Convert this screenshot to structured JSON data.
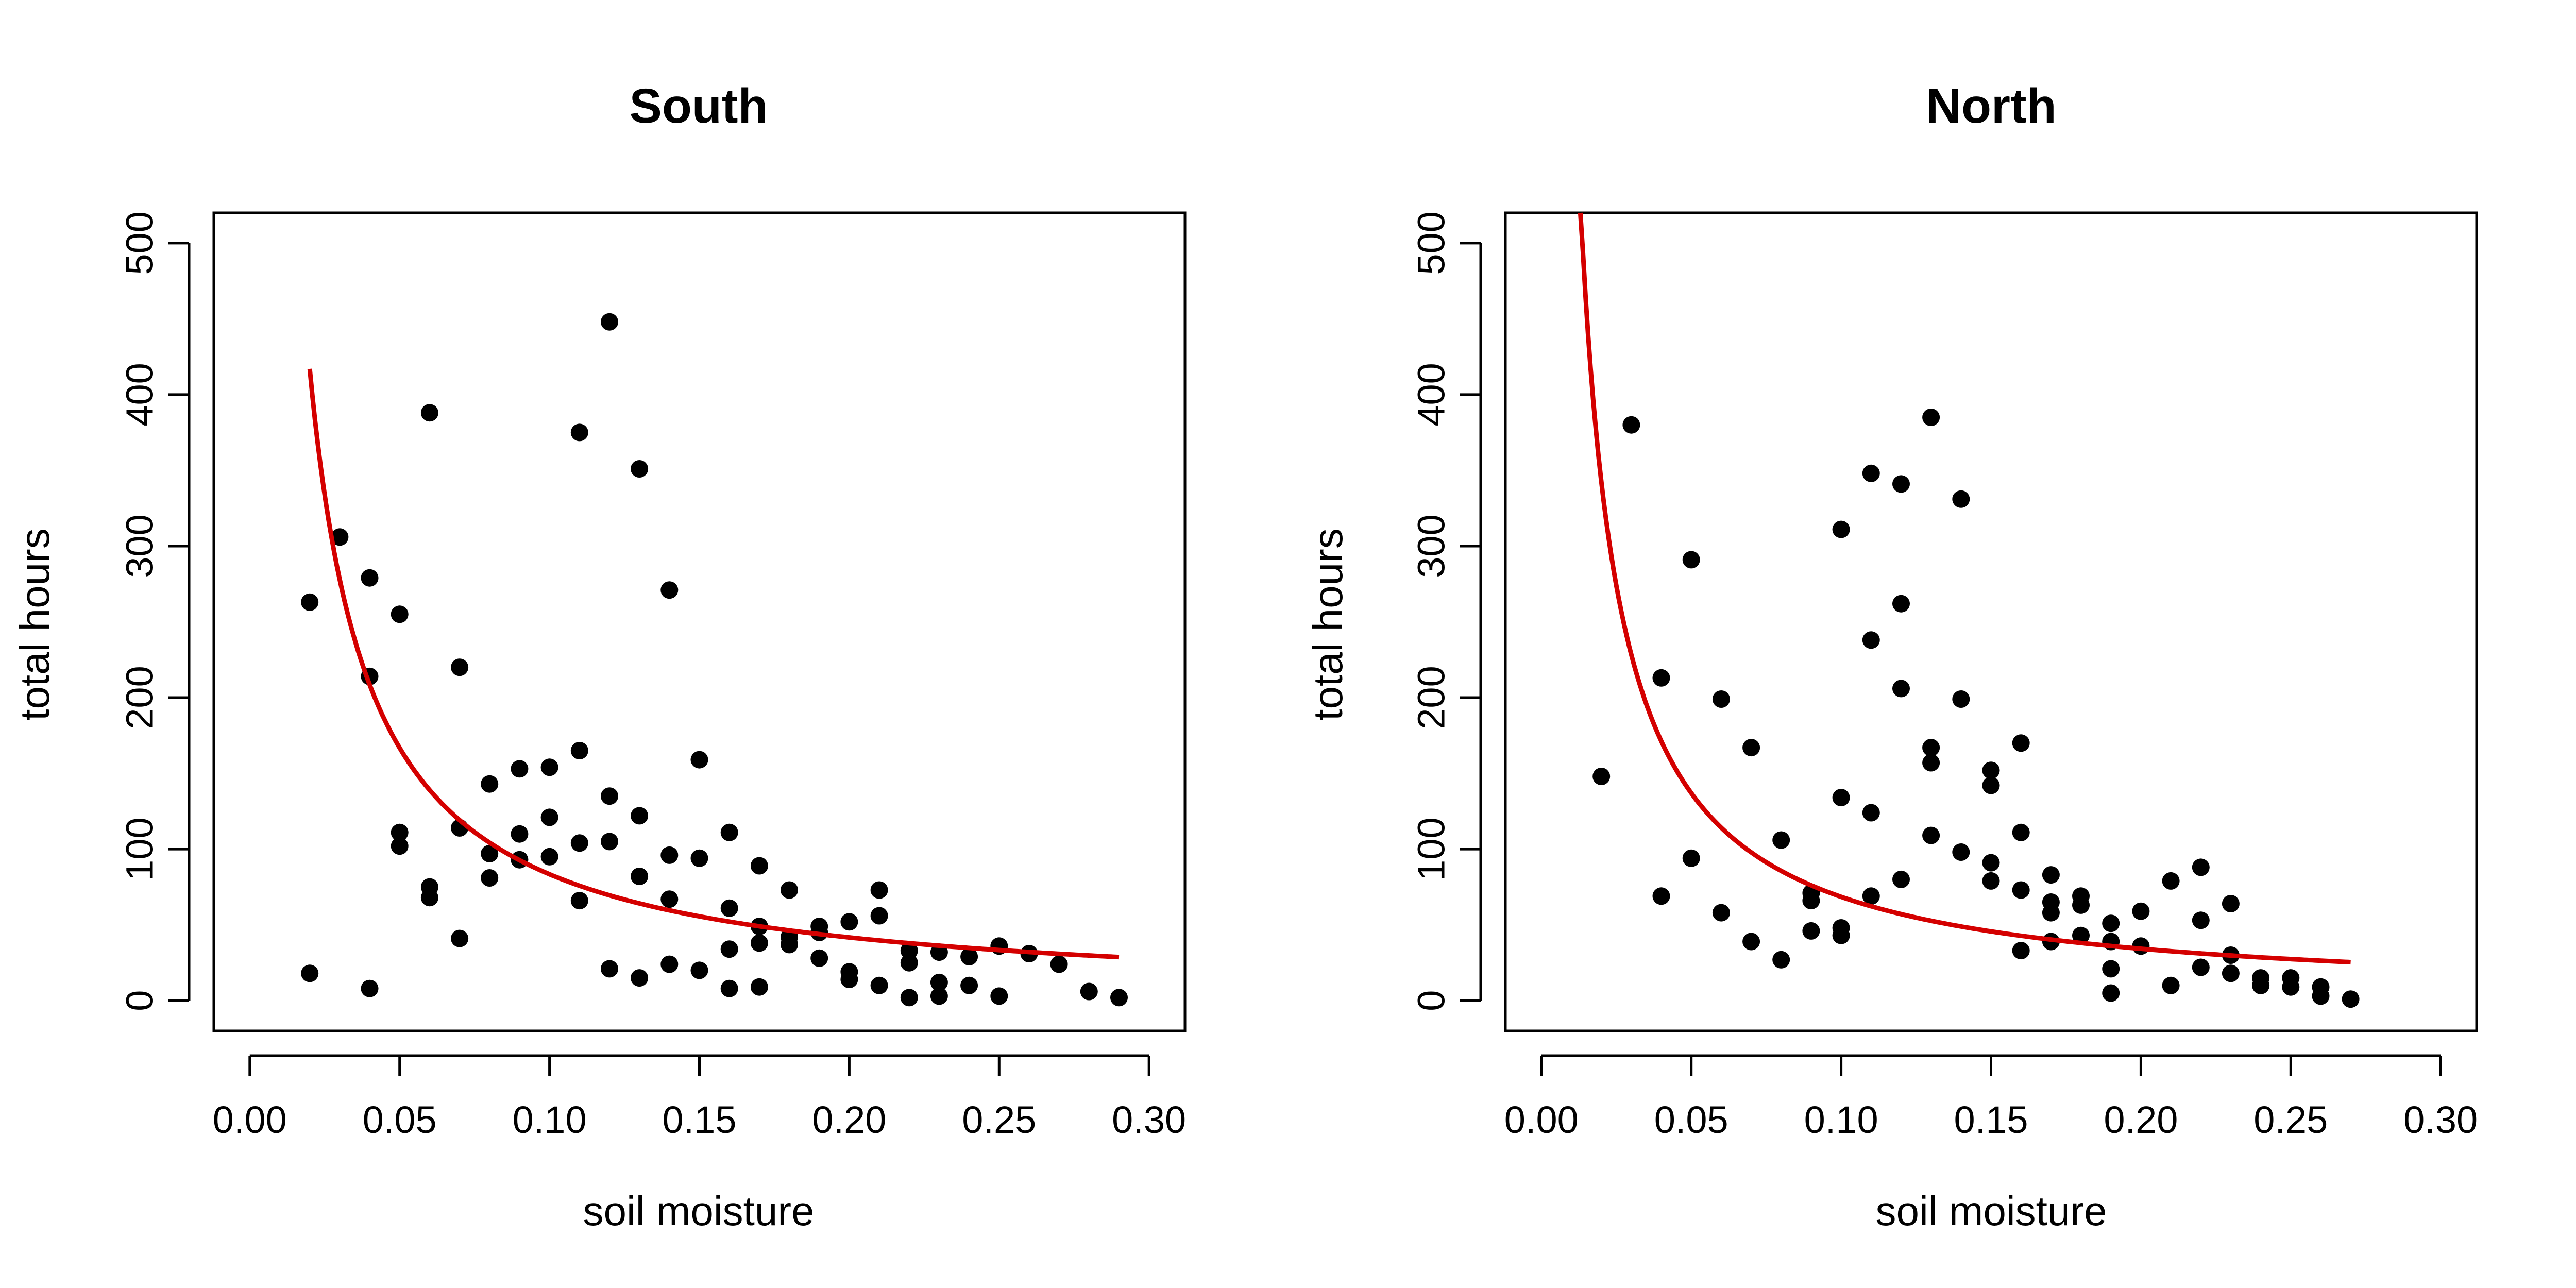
{
  "colors": {
    "points": "#000000",
    "fit_curve": "#d40000",
    "background": "#ffffff"
  },
  "chart_data": [
    {
      "type": "scatter",
      "title": "South",
      "xlabel": "soil moisture",
      "ylabel": "total hours",
      "xlim": [
        -0.012,
        0.312
      ],
      "ylim": [
        -20,
        520
      ],
      "xticks": [
        0.0,
        0.05,
        0.1,
        0.15,
        0.2,
        0.25,
        0.3
      ],
      "xtick_labels": [
        "0.00",
        "0.05",
        "0.10",
        "0.15",
        "0.20",
        "0.25",
        "0.30"
      ],
      "yticks": [
        0,
        100,
        200,
        300,
        400,
        500
      ],
      "ytick_labels": [
        "0",
        "100",
        "200",
        "300",
        "400",
        "500"
      ],
      "grid": false,
      "points": [
        [
          0.02,
          263
        ],
        [
          0.02,
          18
        ],
        [
          0.03,
          306
        ],
        [
          0.04,
          279
        ],
        [
          0.04,
          214
        ],
        [
          0.04,
          8
        ],
        [
          0.05,
          255
        ],
        [
          0.05,
          111
        ],
        [
          0.05,
          102
        ],
        [
          0.06,
          388
        ],
        [
          0.06,
          75
        ],
        [
          0.06,
          68
        ],
        [
          0.07,
          220
        ],
        [
          0.07,
          114
        ],
        [
          0.07,
          41
        ],
        [
          0.08,
          143
        ],
        [
          0.08,
          97
        ],
        [
          0.08,
          81
        ],
        [
          0.09,
          153
        ],
        [
          0.09,
          110
        ],
        [
          0.09,
          93
        ],
        [
          0.1,
          154
        ],
        [
          0.1,
          121
        ],
        [
          0.1,
          95
        ],
        [
          0.11,
          375
        ],
        [
          0.11,
          165
        ],
        [
          0.11,
          104
        ],
        [
          0.11,
          66
        ],
        [
          0.12,
          448
        ],
        [
          0.12,
          135
        ],
        [
          0.12,
          105
        ],
        [
          0.12,
          21
        ],
        [
          0.13,
          351
        ],
        [
          0.13,
          122
        ],
        [
          0.13,
          82
        ],
        [
          0.13,
          15
        ],
        [
          0.14,
          271
        ],
        [
          0.14,
          96
        ],
        [
          0.14,
          67
        ],
        [
          0.14,
          24
        ],
        [
          0.15,
          159
        ],
        [
          0.15,
          94
        ],
        [
          0.15,
          20
        ],
        [
          0.16,
          111
        ],
        [
          0.16,
          61
        ],
        [
          0.16,
          34
        ],
        [
          0.16,
          8
        ],
        [
          0.17,
          89
        ],
        [
          0.17,
          49
        ],
        [
          0.17,
          38
        ],
        [
          0.17,
          9
        ],
        [
          0.18,
          73
        ],
        [
          0.18,
          42
        ],
        [
          0.18,
          37
        ],
        [
          0.19,
          49
        ],
        [
          0.19,
          45
        ],
        [
          0.19,
          28
        ],
        [
          0.2,
          52
        ],
        [
          0.2,
          19
        ],
        [
          0.2,
          14
        ],
        [
          0.21,
          73
        ],
        [
          0.21,
          56
        ],
        [
          0.21,
          10
        ],
        [
          0.22,
          33
        ],
        [
          0.22,
          25
        ],
        [
          0.22,
          2
        ],
        [
          0.23,
          32
        ],
        [
          0.23,
          12
        ],
        [
          0.23,
          3
        ],
        [
          0.24,
          29
        ],
        [
          0.24,
          10
        ],
        [
          0.25,
          36
        ],
        [
          0.25,
          3
        ],
        [
          0.26,
          31
        ],
        [
          0.27,
          24
        ],
        [
          0.28,
          6
        ],
        [
          0.29,
          2
        ]
      ],
      "fit": {
        "model": "a / x",
        "a": 8.34,
        "x_range": [
          0.02,
          0.29
        ]
      }
    },
    {
      "type": "scatter",
      "title": "North",
      "xlabel": "soil moisture",
      "ylabel": "total hours",
      "xlim": [
        -0.012,
        0.312
      ],
      "ylim": [
        -20,
        520
      ],
      "xticks": [
        0.0,
        0.05,
        0.1,
        0.15,
        0.2,
        0.25,
        0.3
      ],
      "xtick_labels": [
        "0.00",
        "0.05",
        "0.10",
        "0.15",
        "0.20",
        "0.25",
        "0.30"
      ],
      "yticks": [
        0,
        100,
        200,
        300,
        400,
        500
      ],
      "ytick_labels": [
        "0",
        "100",
        "200",
        "300",
        "400",
        "500"
      ],
      "grid": false,
      "points": [
        [
          0.02,
          148
        ],
        [
          0.03,
          380
        ],
        [
          0.04,
          213
        ],
        [
          0.04,
          69
        ],
        [
          0.05,
          291
        ],
        [
          0.05,
          94
        ],
        [
          0.06,
          199
        ],
        [
          0.06,
          58
        ],
        [
          0.07,
          167
        ],
        [
          0.07,
          39
        ],
        [
          0.08,
          106
        ],
        [
          0.08,
          27
        ],
        [
          0.09,
          71
        ],
        [
          0.09,
          66
        ],
        [
          0.09,
          46
        ],
        [
          0.1,
          311
        ],
        [
          0.1,
          134
        ],
        [
          0.1,
          48
        ],
        [
          0.1,
          43
        ],
        [
          0.11,
          348
        ],
        [
          0.11,
          238
        ],
        [
          0.11,
          124
        ],
        [
          0.11,
          69
        ],
        [
          0.12,
          341
        ],
        [
          0.12,
          262
        ],
        [
          0.12,
          206
        ],
        [
          0.12,
          80
        ],
        [
          0.13,
          385
        ],
        [
          0.13,
          167
        ],
        [
          0.13,
          157
        ],
        [
          0.13,
          109
        ],
        [
          0.14,
          331
        ],
        [
          0.14,
          199
        ],
        [
          0.14,
          98
        ],
        [
          0.15,
          152
        ],
        [
          0.15,
          142
        ],
        [
          0.15,
          91
        ],
        [
          0.15,
          79
        ],
        [
          0.16,
          170
        ],
        [
          0.16,
          111
        ],
        [
          0.16,
          73
        ],
        [
          0.16,
          33
        ],
        [
          0.17,
          83
        ],
        [
          0.17,
          65
        ],
        [
          0.17,
          58
        ],
        [
          0.17,
          39
        ],
        [
          0.18,
          69
        ],
        [
          0.18,
          63
        ],
        [
          0.18,
          43
        ],
        [
          0.19,
          51
        ],
        [
          0.19,
          39
        ],
        [
          0.19,
          21
        ],
        [
          0.19,
          5
        ],
        [
          0.2,
          59
        ],
        [
          0.2,
          36
        ],
        [
          0.21,
          79
        ],
        [
          0.21,
          10
        ],
        [
          0.22,
          88
        ],
        [
          0.22,
          53
        ],
        [
          0.22,
          22
        ],
        [
          0.23,
          64
        ],
        [
          0.23,
          30
        ],
        [
          0.23,
          18
        ],
        [
          0.24,
          15
        ],
        [
          0.24,
          10
        ],
        [
          0.25,
          15
        ],
        [
          0.25,
          9
        ],
        [
          0.26,
          9
        ],
        [
          0.26,
          3
        ],
        [
          0.27,
          1
        ]
      ],
      "fit": {
        "model": "a / x",
        "a": 6.85,
        "x_range": [
          0.013,
          0.27
        ]
      }
    }
  ]
}
